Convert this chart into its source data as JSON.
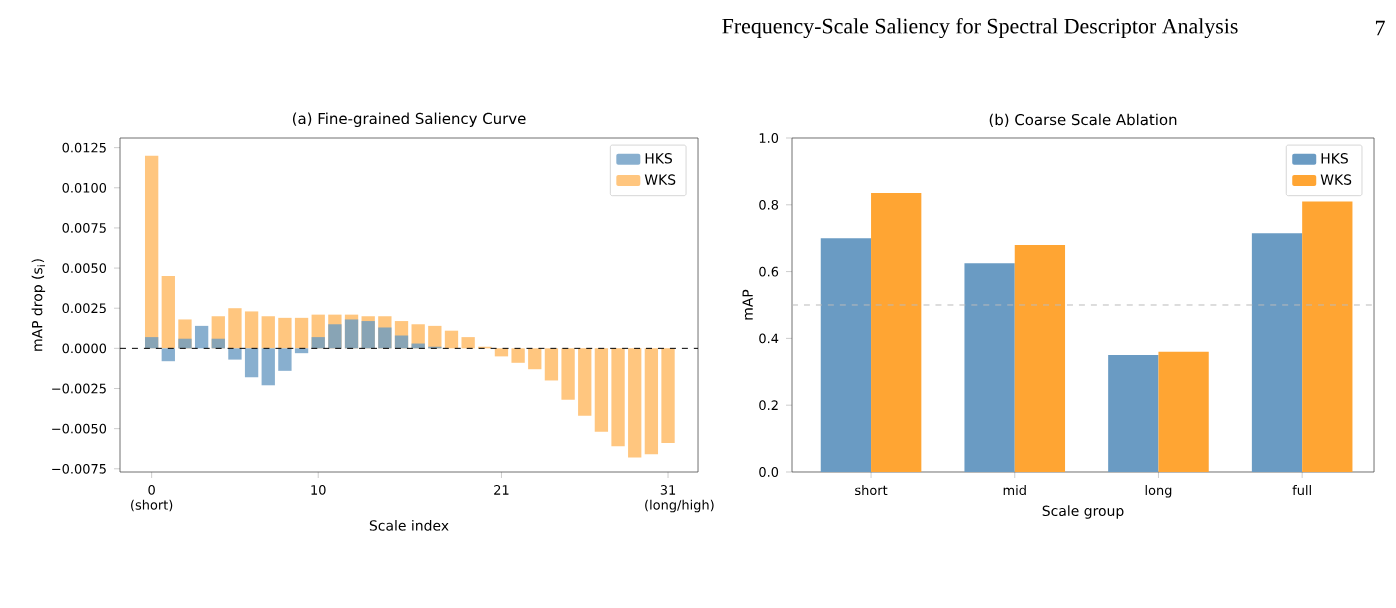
{
  "chart_data": [
    {
      "type": "bar",
      "title": "(a) Fine-grained Saliency Curve",
      "xlabel": "Scale index",
      "ylabel": "mAP drop (s$_{i}$)",
      "x": [
        0,
        1,
        2,
        3,
        4,
        5,
        6,
        7,
        8,
        9,
        10,
        11,
        12,
        13,
        14,
        15,
        16,
        17,
        18,
        19,
        20,
        21,
        22,
        23,
        24,
        25,
        26,
        27,
        28,
        29,
        30,
        31
      ],
      "series": [
        {
          "name": "HKS",
          "color": "#6a9bc3",
          "values": [
            0.0007,
            -0.0008,
            0.0006,
            0.0014,
            0.0006,
            -0.0007,
            -0.0018,
            -0.0023,
            -0.0014,
            -0.0003,
            0.0007,
            0.0015,
            0.0018,
            0.0017,
            0.0013,
            0.0008,
            0.0003,
            0.0001,
            0,
            0,
            0,
            0,
            0,
            0,
            0,
            0,
            0,
            0,
            0,
            0,
            0,
            0
          ]
        },
        {
          "name": "WKS",
          "color": "#ffc67f",
          "values": [
            0.012,
            0.0045,
            0.0018,
            null,
            0.002,
            0.0025,
            0.0023,
            0.002,
            0.0019,
            0.0019,
            0.0021,
            0.0021,
            0.0021,
            0.002,
            0.002,
            0.0017,
            0.0015,
            0.0014,
            0.0011,
            0.0007,
            0.0001,
            -0.0005,
            -0.0009,
            -0.0013,
            -0.002,
            -0.0032,
            -0.0042,
            -0.0052,
            -0.0061,
            -0.0068,
            -0.0066,
            -0.0059
          ]
        }
      ],
      "xlim": [
        -1.9,
        32.8
      ],
      "ylim": [
        -0.0077,
        0.0131
      ],
      "xticks": [
        {
          "value": 0,
          "label": "0 (short)"
        },
        10,
        21,
        {
          "value": 31,
          "label": "31 (long/high)"
        }
      ],
      "yticks": [
        {
          "value": -0.0075,
          "label": "−0.0075"
        },
        {
          "value": -0.005,
          "label": "−0.0050"
        },
        {
          "value": -0.0025,
          "label": "−0.0025"
        },
        {
          "value": 0,
          "label": "0.0000"
        },
        {
          "value": 0.0025,
          "label": "0.0025"
        },
        {
          "value": 0.005,
          "label": "0.0050"
        },
        {
          "value": 0.0075,
          "label": "0.0075"
        },
        {
          "value": 0.01,
          "label": "0.0100"
        },
        {
          "value": 0.0125,
          "label": "0.0125"
        }
      ],
      "ref_lines": [
        {
          "axis": "y",
          "value": 0,
          "color": "#000000",
          "line_style": "dashed"
        }
      ],
      "legend": "top right",
      "annotations": [
        "Frequency-Scale Saliency for Spectral Descriptor Analysis",
        "7"
      ]
    },
    {
      "type": "bar",
      "title": "(b) Coarse Scale Ablation",
      "xlabel": "Scale group",
      "ylabel": "mAP",
      "categories": [
        "short",
        "mid",
        "long",
        "full"
      ],
      "series": [
        {
          "name": "HKS",
          "color": "#6a9bc3",
          "values": [
            0.7,
            0.625,
            0.35,
            0.715
          ]
        },
        {
          "name": "WKS",
          "color": "#ffa533",
          "values": [
            0.835,
            0.68,
            0.36,
            0.81
          ]
        }
      ],
      "ylim": [
        0,
        1
      ],
      "yticks": [
        {
          "value": 0,
          "label": "0.0"
        },
        {
          "value": 0.2,
          "label": "0.2"
        },
        {
          "value": 0.4,
          "label": "0.4"
        },
        {
          "value": 0.6,
          "label": "0.6"
        },
        {
          "value": 0.8,
          "label": "0.8"
        },
        {
          "value": 1,
          "label": "1.0"
        }
      ],
      "ref_lines": [
        {
          "axis": "y",
          "value": 0.5,
          "color": "#bbbbbb",
          "line_style": "dashed"
        }
      ],
      "legend": "top right"
    }
  ]
}
